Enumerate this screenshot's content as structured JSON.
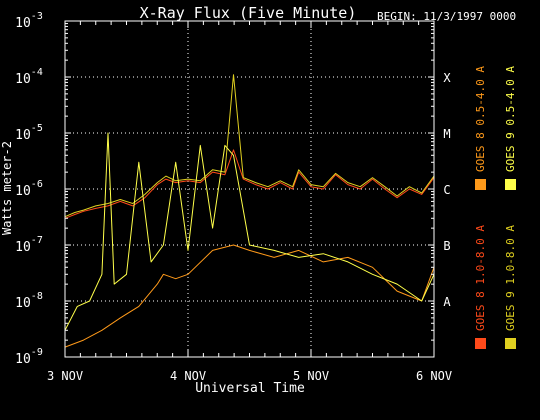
{
  "chart_data": {
    "type": "line",
    "title": "X-Ray Flux (Five Minute)",
    "begin_label": "BEGIN: 11/3/1997 0000",
    "xlabel": "Universal Time",
    "ylabel": "Watts meter-2",
    "yscale": "log",
    "ylim": [
      1e-09,
      0.001
    ],
    "y_ticks": [
      {
        "mant": "10",
        "exp": "-3",
        "value": 0.001
      },
      {
        "mant": "10",
        "exp": "-4",
        "value": 0.0001
      },
      {
        "mant": "10",
        "exp": "-5",
        "value": 1e-05
      },
      {
        "mant": "10",
        "exp": "-6",
        "value": 1e-06
      },
      {
        "mant": "10",
        "exp": "-7",
        "value": 1e-07
      },
      {
        "mant": "10",
        "exp": "-8",
        "value": 1e-08
      },
      {
        "mant": "10",
        "exp": "-9",
        "value": 1e-09
      }
    ],
    "x_ticks": [
      "3 NOV",
      "4 NOV",
      "5 NOV",
      "6 NOV"
    ],
    "xlim_days": [
      0,
      3
    ],
    "flare_classes": [
      {
        "label": "X",
        "value": 0.0001
      },
      {
        "label": "M",
        "value": 1e-05
      },
      {
        "label": "C",
        "value": 1e-06
      },
      {
        "label": "B",
        "value": 1e-07
      },
      {
        "label": "A",
        "value": 1e-08
      }
    ],
    "grid": "dotted at class levels and day boundaries",
    "series": [
      {
        "name": "GOES 8 1.0-8.0 A",
        "color": "#ff4a1a",
        "x_days": [
          0.0,
          0.08,
          0.15,
          0.25,
          0.35,
          0.45,
          0.55,
          0.65,
          0.75,
          0.82,
          0.9,
          1.0,
          1.1,
          1.2,
          1.3,
          1.37,
          1.45,
          1.55,
          1.65,
          1.75,
          1.85,
          1.9,
          2.0,
          2.1,
          2.2,
          2.3,
          2.4,
          2.5,
          2.6,
          2.7,
          2.8,
          2.9,
          3.0
        ],
        "values": [
          3e-07,
          3.5e-07,
          4e-07,
          4.5e-07,
          5e-07,
          6e-07,
          5e-07,
          7e-07,
          1.2e-06,
          1.5e-06,
          1.3e-06,
          1.4e-06,
          1.3e-06,
          2e-06,
          1.8e-06,
          5e-06,
          1.5e-06,
          1.2e-06,
          1e-06,
          1.3e-06,
          1e-06,
          2e-06,
          1.1e-06,
          1e-06,
          1.8e-06,
          1.2e-06,
          1e-06,
          1.5e-06,
          1e-06,
          7e-07,
          1e-06,
          8e-07,
          1.6e-06
        ]
      },
      {
        "name": "GOES 8 0.5-4.0 A",
        "color": "#ff9a1a",
        "x_days": [
          0.0,
          0.15,
          0.3,
          0.45,
          0.6,
          0.75,
          0.8,
          0.9,
          1.0,
          1.2,
          1.37,
          1.5,
          1.7,
          1.9,
          2.1,
          2.3,
          2.5,
          2.7,
          2.9,
          3.0
        ],
        "values": [
          1.5e-09,
          2e-09,
          3e-09,
          5e-09,
          8e-09,
          2e-08,
          3e-08,
          2.5e-08,
          3e-08,
          8e-08,
          1e-07,
          8e-08,
          6e-08,
          8e-08,
          5e-08,
          6e-08,
          4e-08,
          1.5e-08,
          1e-08,
          4e-08
        ]
      },
      {
        "name": "GOES 9 1.0-8.0 A",
        "color": "#e0d020",
        "x_days": [
          0.0,
          0.08,
          0.15,
          0.25,
          0.35,
          0.45,
          0.55,
          0.65,
          0.75,
          0.82,
          0.9,
          1.0,
          1.1,
          1.2,
          1.3,
          1.37,
          1.45,
          1.55,
          1.65,
          1.75,
          1.85,
          1.9,
          2.0,
          2.1,
          2.2,
          2.3,
          2.4,
          2.5,
          2.6,
          2.7,
          2.8,
          2.9,
          3.0
        ],
        "values": [
          3.2e-07,
          3.8e-07,
          4.2e-07,
          5e-07,
          5.5e-07,
          6.5e-07,
          5.5e-07,
          8e-07,
          1.3e-06,
          1.7e-06,
          1.4e-06,
          1.5e-06,
          1.4e-06,
          2.2e-06,
          2e-06,
          0.00011,
          1.6e-06,
          1.3e-06,
          1.1e-06,
          1.4e-06,
          1.1e-06,
          2.2e-06,
          1.2e-06,
          1.1e-06,
          1.9e-06,
          1.3e-06,
          1.1e-06,
          1.6e-06,
          1.1e-06,
          7.5e-07,
          1.1e-06,
          8.5e-07,
          1.7e-06
        ]
      },
      {
        "name": "GOES 9 0.5-4.0 A",
        "color": "#ffff4a",
        "x_days": [
          0.0,
          0.1,
          0.2,
          0.3,
          0.35,
          0.4,
          0.5,
          0.6,
          0.7,
          0.8,
          0.9,
          1.0,
          1.1,
          1.2,
          1.3,
          1.37,
          1.5,
          1.7,
          1.9,
          2.1,
          2.3,
          2.5,
          2.7,
          2.9,
          3.0
        ],
        "values": [
          3e-09,
          8e-09,
          1e-08,
          3e-08,
          1e-05,
          2e-08,
          3e-08,
          3e-06,
          5e-08,
          1e-07,
          3e-06,
          8e-08,
          6e-06,
          2e-07,
          6e-06,
          4e-06,
          1e-07,
          8e-08,
          6e-08,
          7e-08,
          5e-08,
          3e-08,
          2e-08,
          1e-08,
          3e-08
        ]
      }
    ]
  }
}
